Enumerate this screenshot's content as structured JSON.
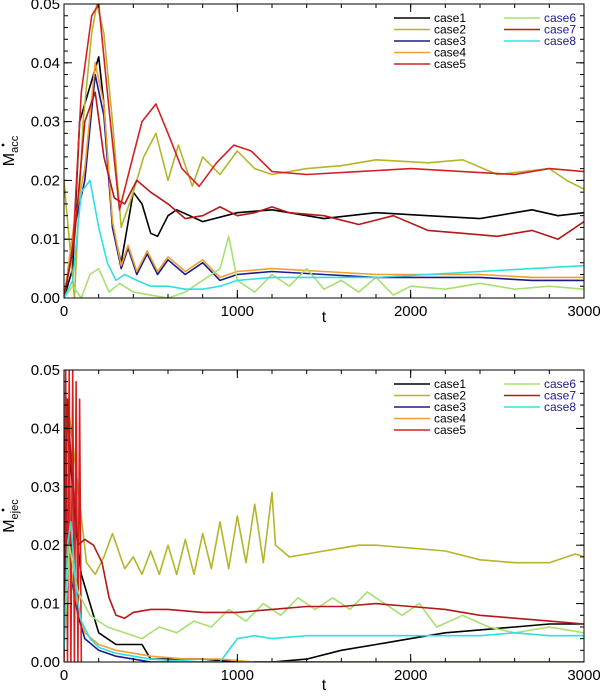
{
  "colors": {
    "case1": "#000000",
    "case2": "#b5b52a",
    "case3": "#1a1a8c",
    "case4": "#f0a030",
    "case5": "#d62020",
    "case6": "#a8e070",
    "case7": "#b51818",
    "case8": "#30e0e0",
    "legend_text_right": "#1a1a8c"
  },
  "chart_data": [
    {
      "type": "line",
      "ylabel_main": "M",
      "ylabel_sub": "acc",
      "xlabel": "t",
      "xlim": [
        0,
        3000
      ],
      "ylim": [
        0,
        0.05
      ],
      "xticks": [
        "0",
        "1000",
        "2000",
        "3000"
      ],
      "yticks": [
        "0.00",
        "0.01",
        "0.02",
        "0.03",
        "0.04",
        "0.05"
      ],
      "legend_position": "top-right",
      "series": [
        {
          "name": "case1",
          "x": [
            0,
            50,
            90,
            140,
            200,
            230,
            280,
            330,
            400,
            450,
            500,
            540,
            600,
            650,
            800,
            1000,
            1200,
            1500,
            1800,
            2100,
            2400,
            2700,
            2850,
            3000
          ],
          "values": [
            0.0,
            0.005,
            0.03,
            0.035,
            0.041,
            0.033,
            0.012,
            0.006,
            0.018,
            0.016,
            0.011,
            0.0105,
            0.014,
            0.015,
            0.013,
            0.0145,
            0.015,
            0.0135,
            0.0145,
            0.014,
            0.0135,
            0.015,
            0.014,
            0.0145
          ]
        },
        {
          "name": "case2",
          "x": [
            0,
            60,
            110,
            160,
            190,
            230,
            280,
            330,
            400,
            460,
            530,
            600,
            660,
            740,
            800,
            900,
            1000,
            1100,
            1200,
            1400,
            1600,
            1800,
            2100,
            2300,
            2500,
            2800,
            2900,
            3000
          ],
          "values": [
            0.02,
            0.0,
            0.03,
            0.045,
            0.05,
            0.045,
            0.03,
            0.012,
            0.018,
            0.024,
            0.028,
            0.02,
            0.026,
            0.019,
            0.024,
            0.021,
            0.025,
            0.022,
            0.021,
            0.022,
            0.0225,
            0.0235,
            0.023,
            0.0235,
            0.021,
            0.022,
            0.02,
            0.0185
          ]
        },
        {
          "name": "case3",
          "x": [
            0,
            60,
            120,
            180,
            230,
            280,
            330,
            370,
            420,
            480,
            540,
            600,
            700,
            800,
            900,
            1000,
            1200,
            1500,
            1800,
            2100,
            2400,
            2700,
            3000
          ],
          "values": [
            0.0,
            0.012,
            0.02,
            0.038,
            0.031,
            0.012,
            0.005,
            0.0085,
            0.004,
            0.0075,
            0.004,
            0.0065,
            0.004,
            0.006,
            0.003,
            0.004,
            0.0045,
            0.004,
            0.0035,
            0.0035,
            0.0035,
            0.003,
            0.003
          ]
        },
        {
          "name": "case4",
          "x": [
            0,
            60,
            120,
            180,
            230,
            280,
            330,
            370,
            420,
            480,
            540,
            600,
            700,
            800,
            900,
            1000,
            1200,
            1500,
            1800,
            2100,
            2400,
            2700,
            3000
          ],
          "values": [
            0.0,
            0.013,
            0.022,
            0.04,
            0.033,
            0.013,
            0.0055,
            0.009,
            0.0045,
            0.008,
            0.0045,
            0.007,
            0.0045,
            0.0065,
            0.0035,
            0.0045,
            0.005,
            0.0045,
            0.004,
            0.004,
            0.004,
            0.0035,
            0.0035
          ]
        },
        {
          "name": "case5",
          "x": [
            0,
            50,
            100,
            160,
            200,
            260,
            320,
            380,
            450,
            530,
            600,
            680,
            780,
            880,
            980,
            1080,
            1200,
            1400,
            1700,
            2000,
            2300,
            2600,
            2800,
            3000
          ],
          "values": [
            0.0,
            0.008,
            0.035,
            0.048,
            0.05,
            0.032,
            0.015,
            0.022,
            0.03,
            0.033,
            0.028,
            0.022,
            0.019,
            0.023,
            0.026,
            0.025,
            0.0215,
            0.021,
            0.0215,
            0.022,
            0.0215,
            0.021,
            0.022,
            0.0215
          ]
        },
        {
          "name": "case6",
          "x": [
            0,
            50,
            100,
            150,
            200,
            260,
            320,
            400,
            500,
            600,
            700,
            800,
            900,
            950,
            1000,
            1100,
            1200,
            1300,
            1400,
            1500,
            1600,
            1700,
            1800,
            1900,
            2000,
            2200,
            2400,
            2600,
            2800,
            3000
          ],
          "values": [
            0.0,
            0.002,
            0.0,
            0.004,
            0.005,
            0.001,
            0.0025,
            0.001,
            0.0005,
            0.0,
            0.001,
            0.003,
            0.005,
            0.0105,
            0.003,
            0.001,
            0.004,
            0.002,
            0.005,
            0.0015,
            0.003,
            0.001,
            0.0035,
            0.0005,
            0.002,
            0.0015,
            0.0025,
            0.0015,
            0.002,
            0.0015
          ]
        },
        {
          "name": "case7",
          "x": [
            0,
            60,
            120,
            180,
            230,
            290,
            350,
            420,
            500,
            600,
            700,
            800,
            900,
            1000,
            1100,
            1200,
            1300,
            1500,
            1700,
            1900,
            2100,
            2300,
            2500,
            2700,
            2850,
            3000
          ],
          "values": [
            0.0,
            0.01,
            0.03,
            0.035,
            0.024,
            0.017,
            0.016,
            0.02,
            0.018,
            0.016,
            0.0135,
            0.014,
            0.0155,
            0.014,
            0.0145,
            0.0155,
            0.0145,
            0.014,
            0.0125,
            0.014,
            0.0115,
            0.011,
            0.0105,
            0.0115,
            0.01,
            0.013
          ]
        },
        {
          "name": "case8",
          "x": [
            0,
            50,
            100,
            150,
            200,
            250,
            300,
            350,
            420,
            500,
            600,
            700,
            800,
            900,
            1000,
            1200,
            1500,
            1800,
            2100,
            2400,
            2700,
            3000
          ],
          "values": [
            0.0,
            0.003,
            0.018,
            0.02,
            0.012,
            0.006,
            0.003,
            0.004,
            0.003,
            0.002,
            0.002,
            0.0015,
            0.0015,
            0.002,
            0.003,
            0.0035,
            0.0035,
            0.0035,
            0.004,
            0.0045,
            0.005,
            0.0055
          ]
        }
      ]
    },
    {
      "type": "line",
      "ylabel_main": "M",
      "ylabel_sub": "ejec",
      "xlabel": "t",
      "xlim": [
        0,
        3000
      ],
      "ylim": [
        0,
        0.05
      ],
      "xticks": [
        "0",
        "1000",
        "2000",
        "3000"
      ],
      "yticks": [
        "0.00",
        "0.01",
        "0.02",
        "0.03",
        "0.04",
        "0.05"
      ],
      "legend_position": "top-right",
      "series": [
        {
          "name": "case1",
          "x": [
            0,
            15,
            30,
            60,
            100,
            150,
            200,
            300,
            450,
            500,
            600,
            800,
            1000,
            1200,
            1400,
            1600,
            1800,
            2000,
            2200,
            2400,
            2600,
            2800,
            3000
          ],
          "values": [
            0.002,
            0.045,
            0.038,
            0.025,
            0.015,
            0.01,
            0.005,
            0.003,
            0.003,
            0.0005,
            0.0005,
            0.0005,
            0.0,
            0.0,
            0.0005,
            0.002,
            0.003,
            0.004,
            0.005,
            0.0055,
            0.006,
            0.0065,
            0.0065
          ]
        },
        {
          "name": "case2",
          "x": [
            0,
            20,
            40,
            80,
            130,
            180,
            230,
            280,
            350,
            400,
            450,
            500,
            550,
            600,
            650,
            700,
            750,
            800,
            850,
            900,
            950,
            1000,
            1050,
            1100,
            1150,
            1200,
            1220,
            1260,
            1300,
            1400,
            1500,
            1600,
            1700,
            1800,
            2000,
            2200,
            2400,
            2600,
            2800,
            2950,
            3000
          ],
          "values": [
            0.02,
            0.045,
            0.04,
            0.03,
            0.017,
            0.015,
            0.018,
            0.022,
            0.016,
            0.018,
            0.015,
            0.019,
            0.015,
            0.02,
            0.015,
            0.021,
            0.015,
            0.022,
            0.016,
            0.024,
            0.016,
            0.025,
            0.017,
            0.027,
            0.017,
            0.029,
            0.02,
            0.019,
            0.018,
            0.0185,
            0.019,
            0.0195,
            0.02,
            0.02,
            0.0195,
            0.019,
            0.0175,
            0.017,
            0.017,
            0.0185,
            0.018
          ]
        },
        {
          "name": "case3",
          "x": [
            0,
            20,
            40,
            80,
            120,
            200,
            300,
            400,
            500,
            600,
            800,
            1000,
            1500,
            2000,
            2500,
            3000
          ],
          "values": [
            0.002,
            0.03,
            0.015,
            0.008,
            0.004,
            0.002,
            0.001,
            0.0005,
            0.0,
            0.0,
            0.0,
            0.0,
            0.0,
            0.0,
            0.0,
            0.0
          ]
        },
        {
          "name": "case4",
          "x": [
            0,
            20,
            40,
            80,
            120,
            200,
            300,
            400,
            500,
            700,
            900,
            1100,
            1500,
            2000,
            2500,
            3000
          ],
          "values": [
            0.002,
            0.032,
            0.016,
            0.009,
            0.005,
            0.003,
            0.002,
            0.0015,
            0.001,
            0.0005,
            0.0005,
            0.0,
            0.0,
            0.0,
            0.0,
            0.0
          ]
        },
        {
          "name": "case5",
          "x": [
            0,
            10,
            20,
            30,
            40,
            50,
            60,
            70,
            80,
            90,
            100
          ],
          "values": [
            0.0,
            0.05,
            0.0,
            0.05,
            0.0,
            0.05,
            0.0,
            0.048,
            0.0,
            0.045,
            0.0
          ]
        },
        {
          "name": "case6",
          "x": [
            0,
            30,
            80,
            150,
            250,
            350,
            450,
            550,
            650,
            750,
            850,
            950,
            1050,
            1150,
            1250,
            1350,
            1450,
            1550,
            1650,
            1750,
            1850,
            1950,
            2050,
            2150,
            2300,
            2450,
            2600,
            2800,
            3000
          ],
          "values": [
            0.002,
            0.02,
            0.012,
            0.008,
            0.006,
            0.005,
            0.004,
            0.006,
            0.005,
            0.007,
            0.006,
            0.009,
            0.007,
            0.01,
            0.008,
            0.011,
            0.009,
            0.011,
            0.009,
            0.012,
            0.01,
            0.008,
            0.01,
            0.006,
            0.008,
            0.006,
            0.005,
            0.006,
            0.005
          ]
        },
        {
          "name": "case7",
          "x": [
            0,
            20,
            40,
            80,
            120,
            170,
            220,
            260,
            300,
            350,
            400,
            500,
            600,
            800,
            1000,
            1200,
            1400,
            1600,
            1800,
            2000,
            2200,
            2400,
            2600,
            2800,
            3000
          ],
          "values": [
            0.002,
            0.045,
            0.035,
            0.02,
            0.021,
            0.02,
            0.017,
            0.011,
            0.008,
            0.0075,
            0.0085,
            0.009,
            0.009,
            0.0085,
            0.0085,
            0.009,
            0.0095,
            0.0095,
            0.01,
            0.0095,
            0.009,
            0.008,
            0.0075,
            0.007,
            0.0065
          ]
        },
        {
          "name": "case8",
          "x": [
            0,
            20,
            40,
            70,
            100,
            150,
            200,
            300,
            400,
            500,
            600,
            700,
            800,
            900,
            1000,
            1100,
            1200,
            1400,
            1600,
            1800,
            2000,
            2200,
            2400,
            2600,
            2800,
            3000
          ],
          "values": [
            0.002,
            0.02,
            0.024,
            0.012,
            0.007,
            0.004,
            0.0025,
            0.0015,
            0.001,
            0.0005,
            0.0003,
            0.0002,
            0.0,
            0.0,
            0.004,
            0.0045,
            0.004,
            0.0045,
            0.0045,
            0.0045,
            0.0045,
            0.0045,
            0.0045,
            0.005,
            0.0045,
            0.0045
          ]
        }
      ]
    }
  ]
}
